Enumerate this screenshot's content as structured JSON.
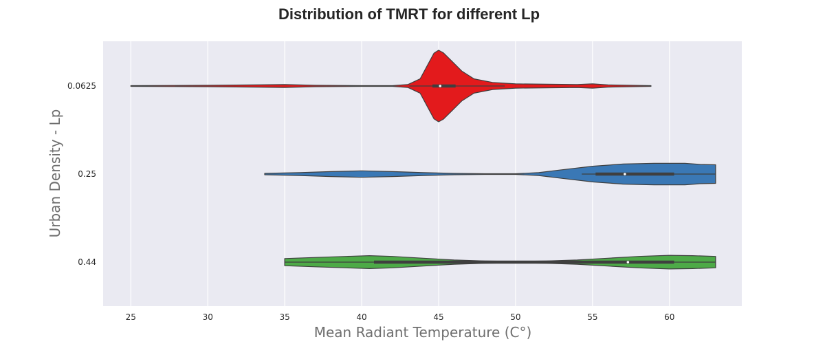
{
  "chart_data": {
    "type": "violin",
    "orientation": "horizontal",
    "title": "Distribution of TMRT for different Lp",
    "xlabel": "Mean Radiant Temperature (C°)",
    "ylabel": "Urban Density - Lp",
    "xlim": [
      23.2,
      64.7
    ],
    "xticks": [
      25,
      30,
      35,
      40,
      45,
      50,
      55,
      60
    ],
    "categories": [
      "0.0625",
      "0.25",
      "0.44"
    ],
    "grid": true,
    "series": [
      {
        "category": "0.0625",
        "color": "#e31a1c",
        "min": 25.0,
        "max": 58.8,
        "q1": 44.6,
        "median": 45.1,
        "q3": 46.1,
        "whisker_low": 43.1,
        "whisker_high": 49.3,
        "density": [
          [
            25,
            0.01
          ],
          [
            30,
            0.02
          ],
          [
            33,
            0.03
          ],
          [
            35,
            0.04
          ],
          [
            37,
            0.02
          ],
          [
            40,
            0.01
          ],
          [
            42,
            0.01
          ],
          [
            43,
            0.04
          ],
          [
            43.8,
            0.2
          ],
          [
            44.3,
            0.6
          ],
          [
            44.7,
            0.92
          ],
          [
            45.0,
            1.0
          ],
          [
            45.3,
            0.93
          ],
          [
            45.8,
            0.72
          ],
          [
            46.5,
            0.42
          ],
          [
            47.3,
            0.2
          ],
          [
            48.5,
            0.1
          ],
          [
            50,
            0.06
          ],
          [
            52,
            0.05
          ],
          [
            54,
            0.04
          ],
          [
            55,
            0.06
          ],
          [
            56,
            0.03
          ],
          [
            57.5,
            0.02
          ],
          [
            58.8,
            0.01
          ]
        ]
      },
      {
        "category": "0.25",
        "color": "#3a78b5",
        "min": 33.7,
        "max": 63.0,
        "q1": 55.2,
        "median": 57.1,
        "q3": 60.3,
        "whisker_low": 54.3,
        "whisker_high": 63.0,
        "density": [
          [
            33.7,
            0.02
          ],
          [
            36,
            0.04
          ],
          [
            38,
            0.07
          ],
          [
            40,
            0.09
          ],
          [
            42,
            0.07
          ],
          [
            44,
            0.04
          ],
          [
            46,
            0.02
          ],
          [
            48,
            0.01
          ],
          [
            50,
            0.01
          ],
          [
            51.5,
            0.04
          ],
          [
            53,
            0.12
          ],
          [
            55,
            0.22
          ],
          [
            57,
            0.28
          ],
          [
            59,
            0.3
          ],
          [
            61,
            0.3
          ],
          [
            62,
            0.27
          ],
          [
            63.0,
            0.26
          ]
        ]
      },
      {
        "category": "0.44",
        "color": "#4daa47",
        "min": 35.0,
        "max": 63.0,
        "q1": 40.8,
        "median": 57.3,
        "q3": 60.3,
        "whisker_low": 35.0,
        "whisker_high": 63.0,
        "density": [
          [
            35,
            0.1
          ],
          [
            37,
            0.13
          ],
          [
            39,
            0.16
          ],
          [
            40.5,
            0.18
          ],
          [
            42,
            0.16
          ],
          [
            44,
            0.11
          ],
          [
            46,
            0.06
          ],
          [
            48,
            0.03
          ],
          [
            50,
            0.02
          ],
          [
            52,
            0.03
          ],
          [
            54,
            0.06
          ],
          [
            56,
            0.11
          ],
          [
            58,
            0.16
          ],
          [
            60,
            0.19
          ],
          [
            61.5,
            0.18
          ],
          [
            63.0,
            0.16
          ]
        ]
      }
    ]
  }
}
